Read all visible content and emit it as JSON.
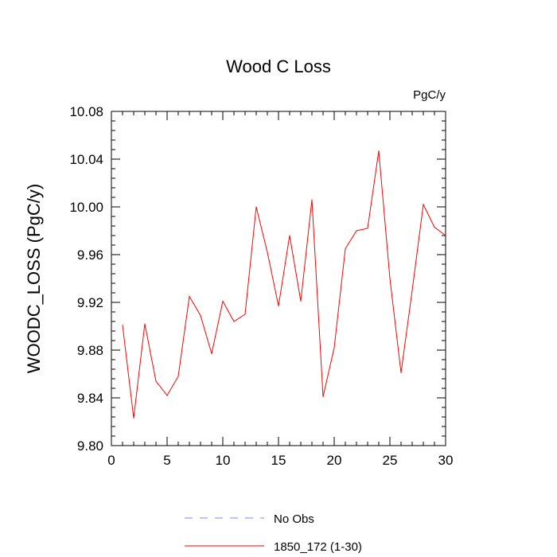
{
  "chart_data": {
    "type": "line",
    "title": "Wood C Loss",
    "units_label": "PgC/y",
    "ylabel": "WOODC_LOSS  (PgC/y)",
    "xlabel": "",
    "xlim": [
      0,
      30
    ],
    "ylim": [
      9.8,
      10.08
    ],
    "xticks": [
      0,
      5,
      10,
      15,
      20,
      25,
      30
    ],
    "yticks": [
      9.8,
      9.84,
      9.88,
      9.92,
      9.96,
      10.0,
      10.04,
      10.08
    ],
    "ytick_labels": [
      "9.80",
      "9.84",
      "9.88",
      "9.92",
      "9.96",
      "10.00",
      "10.04",
      "10.08"
    ],
    "series": [
      {
        "name": "1850_172 (1-30)",
        "color": "#ff0000",
        "style": "solid",
        "x": [
          1,
          2,
          3,
          4,
          5,
          6,
          7,
          8,
          9,
          10,
          11,
          12,
          13,
          14,
          15,
          16,
          17,
          18,
          19,
          20,
          21,
          22,
          23,
          24,
          25,
          26,
          27,
          28,
          29,
          30
        ],
        "values": [
          9.901,
          9.823,
          9.902,
          9.854,
          9.842,
          9.858,
          9.925,
          9.909,
          9.877,
          9.921,
          9.904,
          9.91,
          10.0,
          9.962,
          9.917,
          9.976,
          9.921,
          10.006,
          9.841,
          9.882,
          9.965,
          9.98,
          9.982,
          10.047,
          9.94,
          9.861,
          9.93,
          10.002,
          9.983,
          9.976
        ]
      }
    ],
    "legend": {
      "placement": "bottom-center",
      "entries": [
        {
          "label": "No Obs",
          "color": "#8080ff",
          "style": "dashed"
        },
        {
          "label": "1850_172 (1-30)",
          "color": "#ff0000",
          "style": "solid"
        }
      ]
    },
    "grid": false
  }
}
